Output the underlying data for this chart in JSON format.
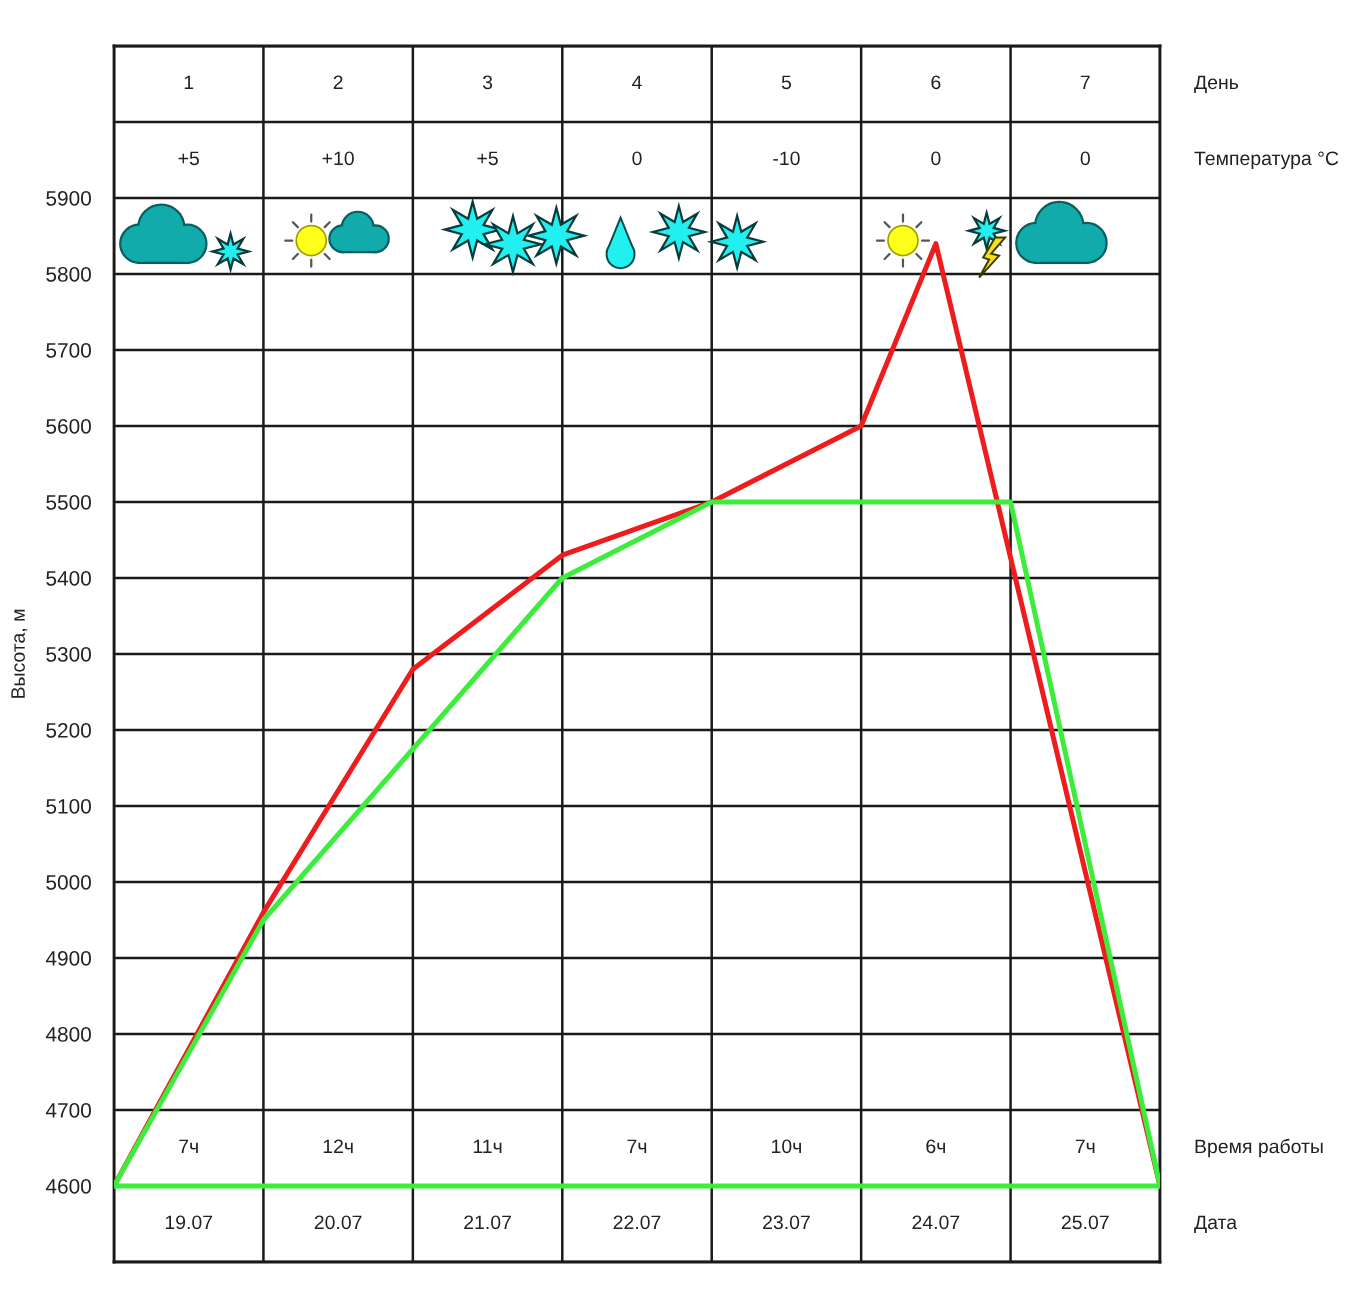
{
  "chart_data": {
    "type": "line",
    "xlabel": "День",
    "ylabel": "Высота, м",
    "xlim": [
      0.5,
      7.5
    ],
    "xticks": [
      {
        "value": 0.5,
        "label": null
      },
      1,
      {
        "value": 1.5,
        "label": null
      },
      2,
      {
        "value": 2.5,
        "label": null
      },
      3,
      {
        "value": 3.5,
        "label": null
      },
      4,
      {
        "value": 4.5,
        "label": null
      },
      5,
      {
        "value": 5.5,
        "label": null
      },
      6,
      {
        "value": 6.5,
        "label": null
      },
      7,
      {
        "value": 7.5,
        "label": null
      }
    ],
    "ylim": [
      4500,
      6100
    ],
    "yticks": [
      {
        "value": 4500,
        "label": null
      },
      4600,
      4700,
      4800,
      4900,
      5000,
      5100,
      5200,
      5300,
      5400,
      5500,
      5600,
      5700,
      5800,
      5900,
      {
        "value": 6000,
        "label": null
      },
      {
        "value": 6100,
        "label": null
      }
    ],
    "grid": true,
    "series": [
      {
        "color": "#ee1c1c",
        "x": [
          0.5,
          1.5,
          2.5,
          3.5,
          4.5,
          5.5,
          6,
          7.5
        ],
        "values": [
          4600,
          4960,
          5280,
          5430,
          5500,
          5600,
          5840,
          4600
        ]
      },
      {
        "color": "#3ced3c",
        "x": [
          0.5,
          1.5,
          3.5,
          4.5,
          6.5,
          7.5
        ],
        "values": [
          4600,
          4950,
          5400,
          5500,
          5500,
          4600
        ]
      }
    ],
    "ref_lines": [
      {
        "axis": "y",
        "value": 4600,
        "color": "#3ced3c"
      }
    ],
    "annotations": [
      "+5",
      "+10",
      "+5",
      "0",
      "-10",
      "0",
      "0",
      "Температура °C",
      "7ч",
      "12ч",
      "11ч",
      "7ч",
      "10ч",
      "6ч",
      "7ч",
      "Время работы",
      "19.07",
      "20.07",
      "21.07",
      "22.07",
      "23.07",
      "24.07",
      "25.07",
      "Дата"
    ]
  }
}
